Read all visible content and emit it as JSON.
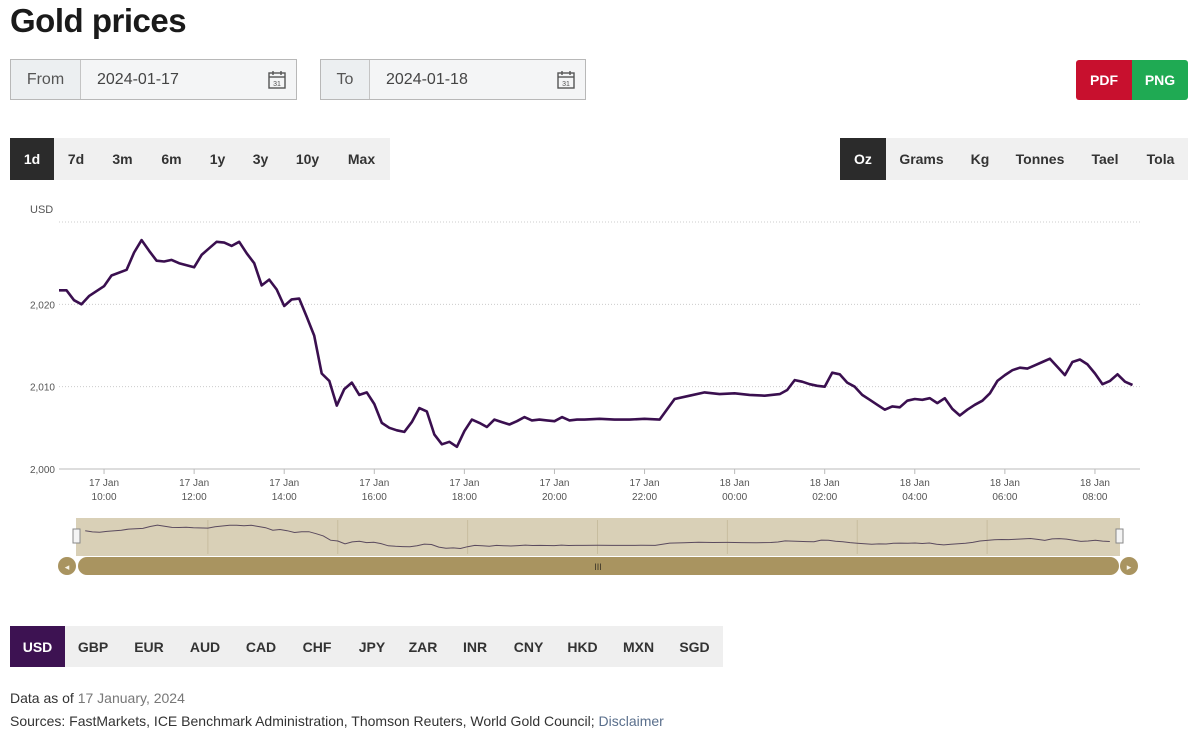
{
  "title": "Gold prices",
  "from": {
    "label": "From",
    "value": "2024-01-17"
  },
  "to": {
    "label": "To",
    "value": "2024-01-18"
  },
  "calendar_icon_text": "31",
  "export": {
    "pdf": "PDF",
    "png": "PNG",
    "pdf_color": "#c8102e",
    "png_color": "#1faa53"
  },
  "ranges": [
    "1d",
    "7d",
    "3m",
    "6m",
    "1y",
    "3y",
    "10y",
    "Max"
  ],
  "active_range": "1d",
  "units": [
    "Oz",
    "Grams",
    "Kg",
    "Tonnes",
    "Tael",
    "Tola"
  ],
  "active_unit": "Oz",
  "currencies": [
    "USD",
    "GBP",
    "EUR",
    "AUD",
    "CAD",
    "CHF",
    "JPY",
    "ZAR",
    "INR",
    "CNY",
    "HKD",
    "MXN",
    "SGD"
  ],
  "active_currency": "USD",
  "chart_data": {
    "type": "line",
    "ylabel": "USD",
    "ylim": [
      2000,
      2030
    ],
    "yticks": [
      "2,000",
      "2,010",
      "2,020"
    ],
    "xticks": [
      {
        "date": "17 Jan",
        "time": "10:00"
      },
      {
        "date": "17 Jan",
        "time": "12:00"
      },
      {
        "date": "17 Jan",
        "time": "14:00"
      },
      {
        "date": "17 Jan",
        "time": "16:00"
      },
      {
        "date": "17 Jan",
        "time": "18:00"
      },
      {
        "date": "17 Jan",
        "time": "20:00"
      },
      {
        "date": "17 Jan",
        "time": "22:00"
      },
      {
        "date": "18 Jan",
        "time": "00:00"
      },
      {
        "date": "18 Jan",
        "time": "02:00"
      },
      {
        "date": "18 Jan",
        "time": "04:00"
      },
      {
        "date": "18 Jan",
        "time": "06:00"
      },
      {
        "date": "18 Jan",
        "time": "08:00"
      }
    ],
    "line_color": "#3a0f4f",
    "grid": true,
    "series": [
      {
        "x": [
          "17 Jan 09:10",
          "17 Jan 09:20",
          "17 Jan 09:30",
          "17 Jan 09:40",
          "17 Jan 10:00",
          "17 Jan 10:10",
          "17 Jan 10:30",
          "17 Jan 10:40",
          "17 Jan 10:50",
          "17 Jan 11:00",
          "17 Jan 11:10",
          "17 Jan 11:20",
          "17 Jan 11:30",
          "17 Jan 11:40",
          "17 Jan 12:00",
          "17 Jan 12:10",
          "17 Jan 12:20",
          "17 Jan 12:30",
          "17 Jan 12:40",
          "17 Jan 12:50",
          "17 Jan 13:00",
          "17 Jan 13:10",
          "17 Jan 13:20",
          "17 Jan 13:30",
          "17 Jan 13:40",
          "17 Jan 13:50",
          "17 Jan 14:00",
          "17 Jan 14:10",
          "17 Jan 14:20",
          "17 Jan 14:30",
          "17 Jan 14:40",
          "17 Jan 14:50",
          "17 Jan 15:00",
          "17 Jan 15:10",
          "17 Jan 15:20",
          "17 Jan 15:30",
          "17 Jan 15:40",
          "17 Jan 15:50",
          "17 Jan 16:00",
          "17 Jan 16:10",
          "17 Jan 16:20",
          "17 Jan 16:30",
          "17 Jan 16:40",
          "17 Jan 16:50",
          "17 Jan 17:00",
          "17 Jan 17:10",
          "17 Jan 17:20",
          "17 Jan 17:30",
          "17 Jan 17:40",
          "17 Jan 17:50",
          "17 Jan 18:00",
          "17 Jan 18:10",
          "17 Jan 18:20",
          "17 Jan 18:30",
          "17 Jan 18:40",
          "17 Jan 18:50",
          "17 Jan 19:00",
          "17 Jan 19:10",
          "17 Jan 19:20",
          "17 Jan 19:30",
          "17 Jan 19:40",
          "17 Jan 19:50",
          "17 Jan 20:00",
          "17 Jan 20:10",
          "17 Jan 20:20",
          "17 Jan 20:30",
          "17 Jan 20:40",
          "17 Jan 21:00",
          "17 Jan 21:20",
          "17 Jan 21:40",
          "17 Jan 22:00",
          "17 Jan 22:20",
          "17 Jan 22:40",
          "17 Jan 23:00",
          "17 Jan 23:20",
          "17 Jan 23:40",
          "18 Jan 00:00",
          "18 Jan 00:20",
          "18 Jan 00:40",
          "18 Jan 01:00",
          "18 Jan 01:10",
          "18 Jan 01:20",
          "18 Jan 01:30",
          "18 Jan 01:40",
          "18 Jan 01:50",
          "18 Jan 02:00",
          "18 Jan 02:10",
          "18 Jan 02:20",
          "18 Jan 02:30",
          "18 Jan 02:40",
          "18 Jan 02:50",
          "18 Jan 03:00",
          "18 Jan 03:10",
          "18 Jan 03:20",
          "18 Jan 03:30",
          "18 Jan 03:40",
          "18 Jan 03:50",
          "18 Jan 04:00",
          "18 Jan 04:10",
          "18 Jan 04:20",
          "18 Jan 04:30",
          "18 Jan 04:40",
          "18 Jan 04:50",
          "18 Jan 05:00",
          "18 Jan 05:10",
          "18 Jan 05:20",
          "18 Jan 05:30",
          "18 Jan 05:40",
          "18 Jan 05:50",
          "18 Jan 06:00",
          "18 Jan 06:10",
          "18 Jan 06:20",
          "18 Jan 06:30",
          "18 Jan 06:40",
          "18 Jan 06:50",
          "18 Jan 07:00",
          "18 Jan 07:10",
          "18 Jan 07:20",
          "18 Jan 07:30",
          "18 Jan 07:40",
          "18 Jan 07:50",
          "18 Jan 08:00",
          "18 Jan 08:10",
          "18 Jan 08:20",
          "18 Jan 08:30",
          "18 Jan 08:40",
          "18 Jan 08:50"
        ],
        "values": [
          2021.7,
          2020.5,
          2020.0,
          2021.0,
          2022.2,
          2023.5,
          2024.2,
          2026.3,
          2027.8,
          2026.5,
          2025.3,
          2025.2,
          2025.4,
          2025.0,
          2024.5,
          2026.0,
          2026.8,
          2027.6,
          2027.5,
          2027.1,
          2027.6,
          2026.2,
          2025.0,
          2022.3,
          2023.0,
          2021.8,
          2019.8,
          2020.6,
          2020.7,
          2018.5,
          2016.2,
          2011.6,
          2010.7,
          2007.7,
          2009.7,
          2010.5,
          2009.0,
          2009.3,
          2007.9,
          2005.6,
          2005.0,
          2004.7,
          2004.5,
          2005.7,
          2007.4,
          2007.0,
          2004.2,
          2003.0,
          2003.3,
          2002.7,
          2004.6,
          2006.0,
          2005.6,
          2005.1,
          2006.0,
          2005.7,
          2005.4,
          2005.8,
          2006.3,
          2005.9,
          2006.0,
          2005.9,
          2005.8,
          2006.3,
          2005.9,
          2006.0,
          2006.0,
          2006.1,
          2006.0,
          2006.0,
          2006.1,
          2006.0,
          2008.5,
          2008.9,
          2009.3,
          2009.1,
          2009.2,
          2009.0,
          2008.9,
          2009.1,
          2009.6,
          2010.8,
          2010.6,
          2010.3,
          2010.1,
          2010.0,
          2011.7,
          2011.5,
          2010.5,
          2010.0,
          2009.0,
          2008.4,
          2007.8,
          2007.2,
          2007.6,
          2007.5,
          2008.3,
          2008.5,
          2008.4,
          2008.6,
          2008.0,
          2008.6,
          2007.3,
          2006.5,
          2007.2,
          2007.8,
          2008.3,
          2009.2,
          2010.7,
          2011.4,
          2012.0,
          2012.3,
          2012.2,
          2012.6,
          2013.0,
          2013.4,
          2012.4,
          2011.4,
          2013.0,
          2013.3,
          2012.7,
          2011.6,
          2010.3,
          2010.7,
          2011.5,
          2010.6,
          2010.2
        ]
      }
    ]
  },
  "navigator": {
    "grip_text": "III"
  },
  "footer": {
    "data_as_of_label": "Data as of",
    "data_as_of_value": "17 January, 2024",
    "sources_label": "Sources: FastMarkets, ICE Benchmark Administration, Thomson Reuters, World Gold Council;",
    "disclaimer": "Disclaimer"
  }
}
